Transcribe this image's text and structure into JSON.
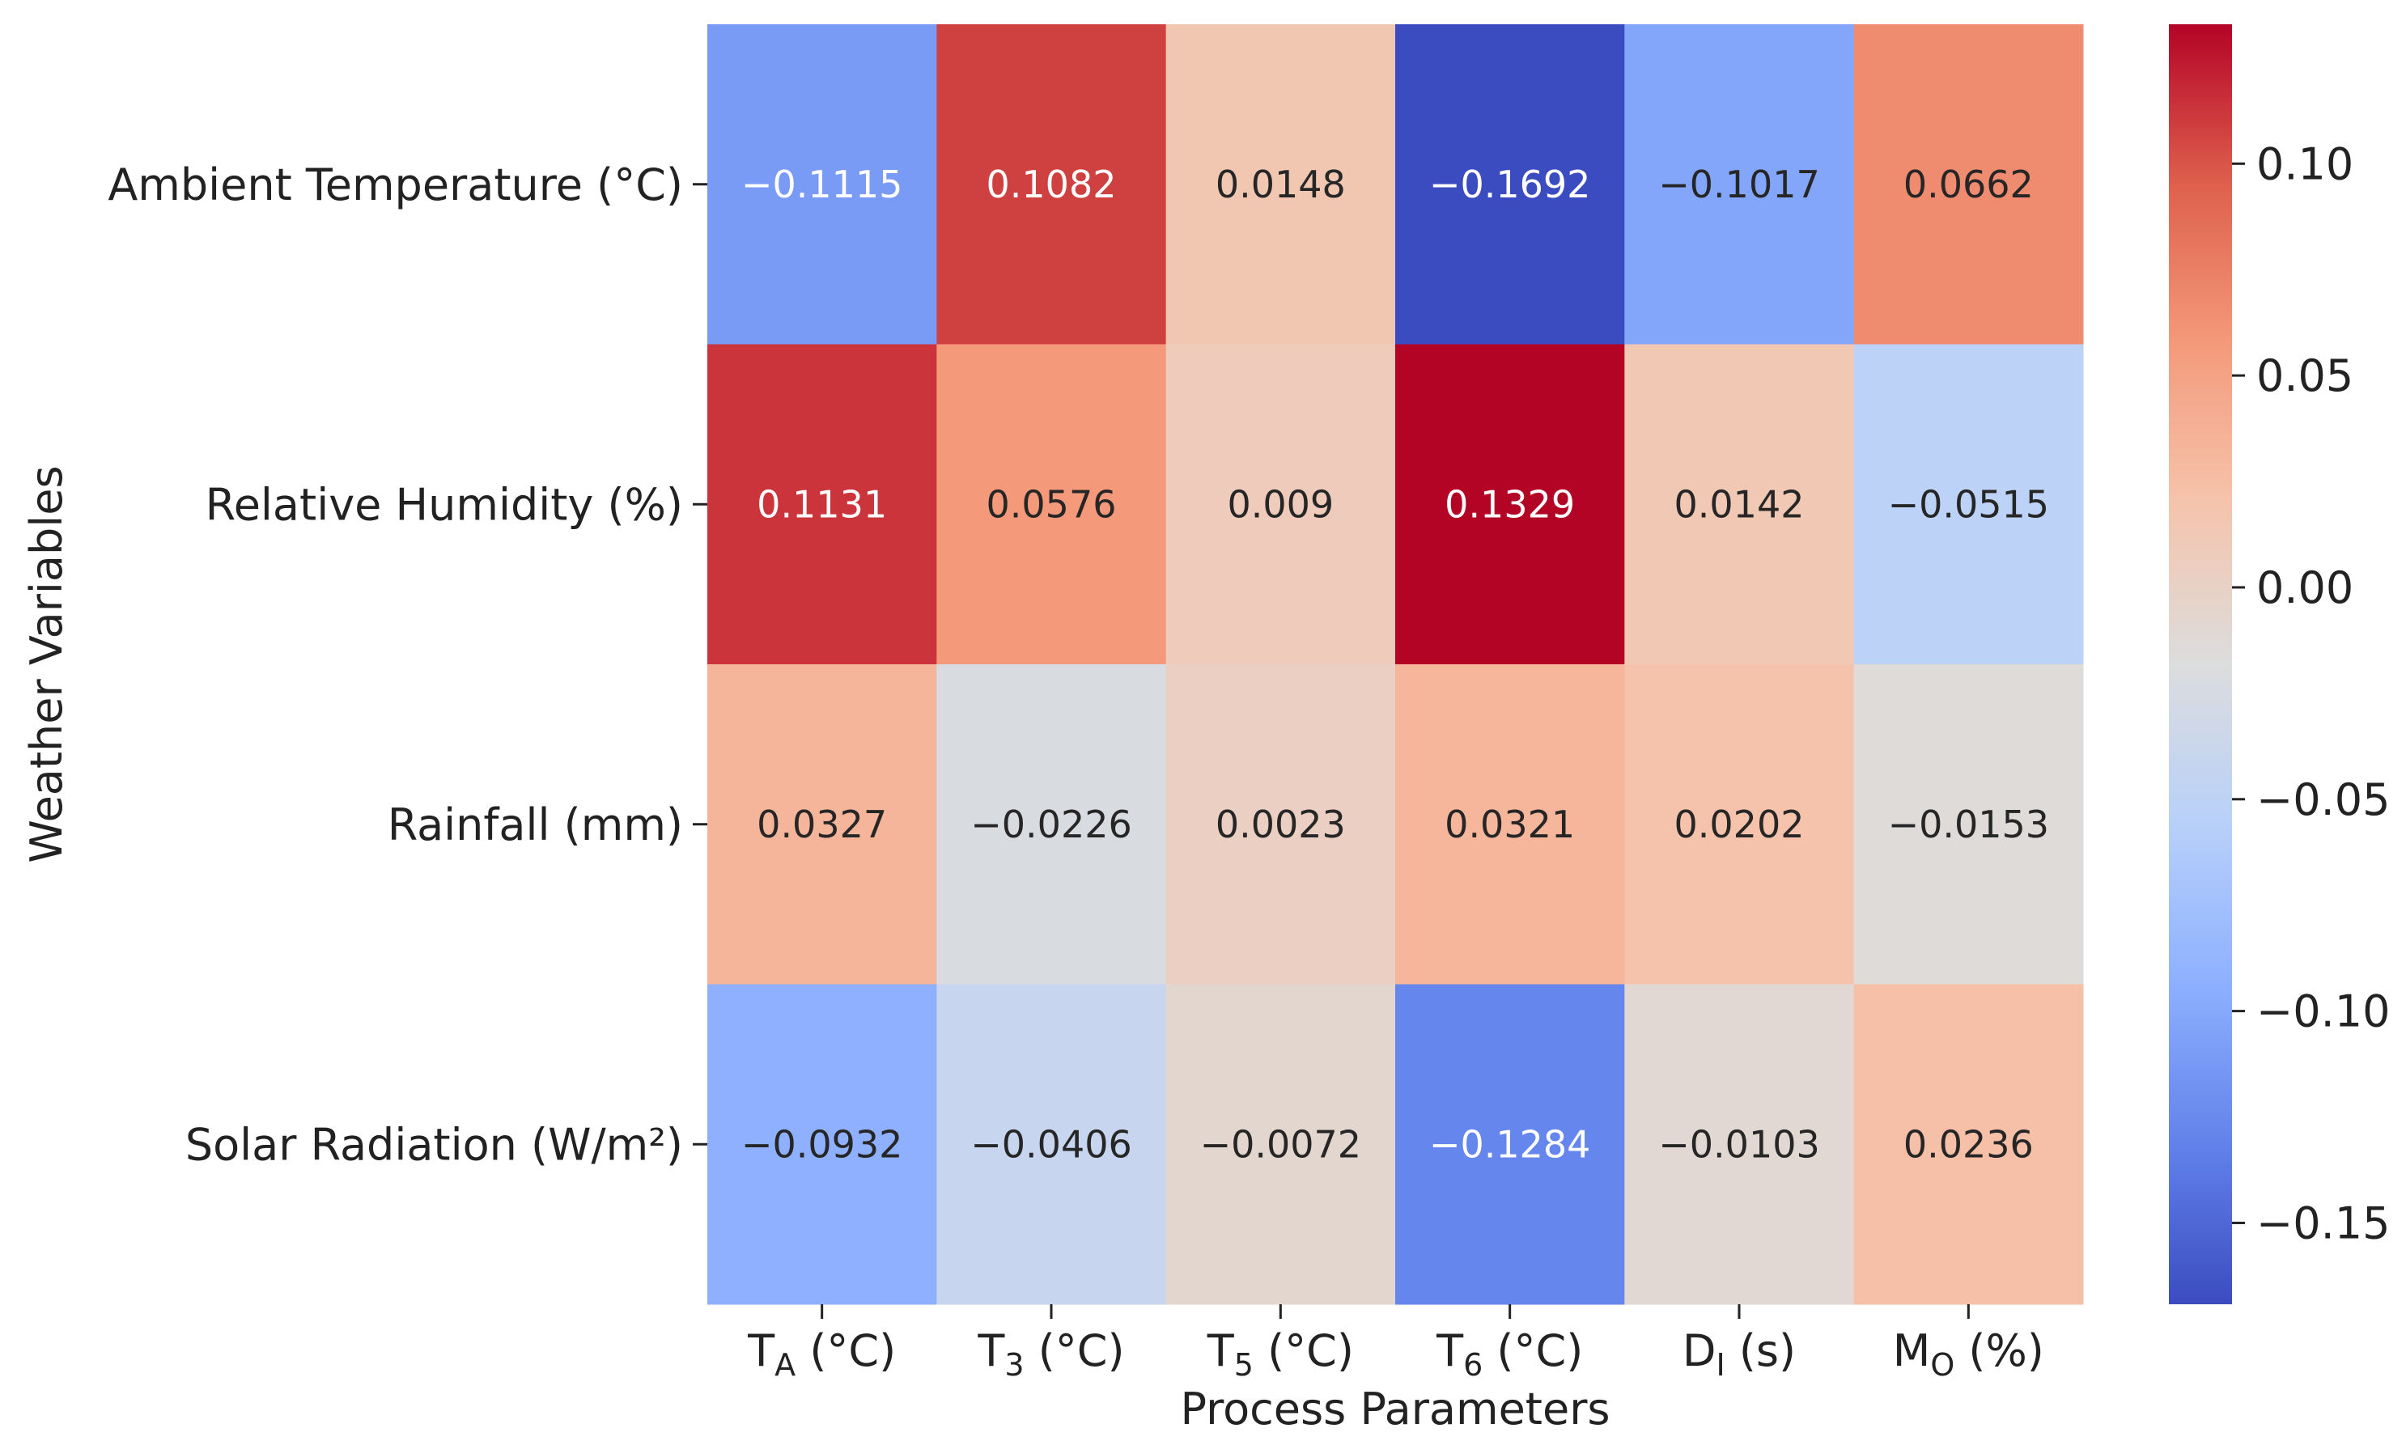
{
  "chart_data": {
    "type": "heatmap",
    "title": "",
    "xlabel": "Process Parameters",
    "ylabel": "Weather Variables",
    "x_categories": [
      {
        "base": "T",
        "sub": "A",
        "suffix": " (°C)"
      },
      {
        "base": "T",
        "sub": "3",
        "suffix": " (°C)"
      },
      {
        "base": "T",
        "sub": "5",
        "suffix": " (°C)"
      },
      {
        "base": "T",
        "sub": "6",
        "suffix": " (°C)"
      },
      {
        "base": "D",
        "sub": "I",
        "suffix": " (s)"
      },
      {
        "base": "M",
        "sub": "O",
        "suffix": " (%)"
      }
    ],
    "y_categories": [
      "Ambient Temperature (°C)",
      "Relative Humidity (%)",
      "Rainfall (mm)",
      "Solar Radiation (W/m²)"
    ],
    "values": [
      [
        -0.1115,
        0.1082,
        0.0148,
        -0.1692,
        -0.1017,
        0.0662
      ],
      [
        0.1131,
        0.0576,
        0.009,
        0.1329,
        0.0142,
        -0.0515
      ],
      [
        0.0327,
        -0.0226,
        0.0023,
        0.0321,
        0.0202,
        -0.0153
      ],
      [
        -0.0932,
        -0.0406,
        -0.0072,
        -0.1284,
        -0.0103,
        0.0236
      ]
    ],
    "cell_labels": [
      [
        "−0.1115",
        "0.1082",
        "0.0148",
        "−0.1692",
        "−0.1017",
        "0.0662"
      ],
      [
        "0.1131",
        "0.0576",
        "0.009",
        "0.1329",
        "0.0142",
        "−0.0515"
      ],
      [
        "0.0327",
        "−0.0226",
        "0.0023",
        "0.0321",
        "0.0202",
        "−0.0153"
      ],
      [
        "−0.0932",
        "−0.0406",
        "−0.0072",
        "−0.1284",
        "−0.0103",
        "0.0236"
      ]
    ],
    "colormap": "coolwarm",
    "vmin": -0.1692,
    "vmax": 0.1329,
    "colorbar": {
      "ticks": [
        0.1,
        0.05,
        0.0,
        -0.05,
        -0.1,
        -0.15
      ],
      "tick_labels": [
        "0.10",
        "0.05",
        "0.00",
        "−0.05",
        "−0.10",
        "−0.15"
      ]
    },
    "colors": {
      "cmap_stops": [
        "#3b4cc0",
        "#6282ea",
        "#8db0fe",
        "#b8d0f9",
        "#dcdddd",
        "#f5c4ac",
        "#f49a7b",
        "#de604d",
        "#b40426"
      ],
      "text_dark": "#262626",
      "text_light": "#ffffff"
    }
  }
}
